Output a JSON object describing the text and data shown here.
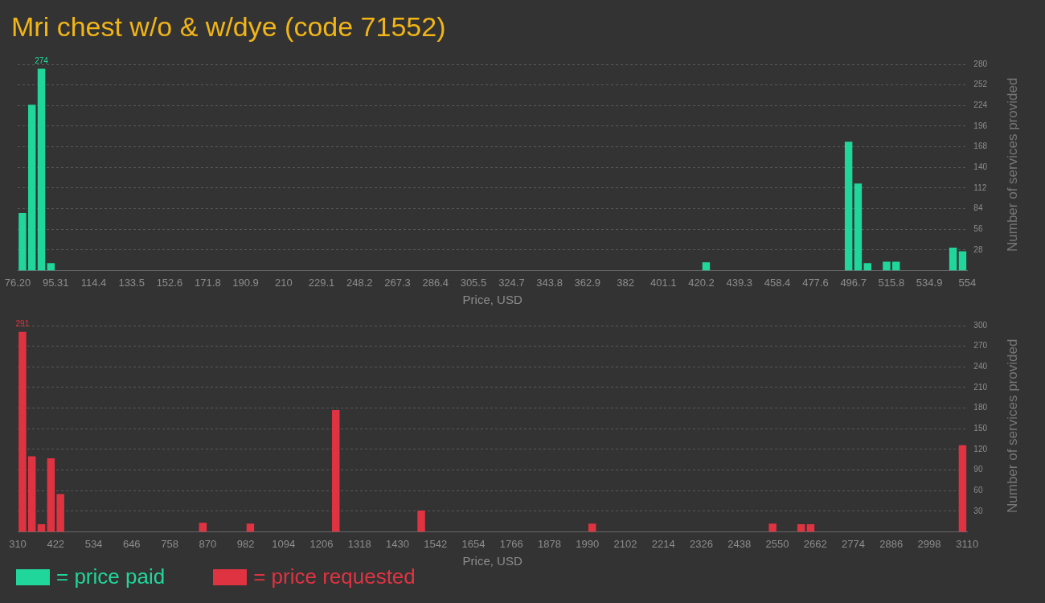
{
  "chart_data": [
    {
      "type": "histogram",
      "title": "Mri chest w/o & w/dye (code 71552)",
      "xlabel": "Price, USD",
      "ylabel": "Number of services provided",
      "bins": [
        76.2,
        80.98,
        85.76,
        90.53,
        95.31,
        100.09,
        104.87,
        109.65,
        114.42,
        119.2,
        123.98,
        128.76,
        133.54,
        138.31,
        143.09,
        147.87,
        152.65,
        157.43,
        162.2,
        166.98,
        171.76,
        176.54,
        181.32,
        186.09,
        190.87,
        195.65,
        200.43,
        205.21,
        209.98,
        214.76,
        219.54,
        224.32,
        229.1,
        233.87,
        238.65,
        243.43,
        248.21,
        252.99,
        257.76,
        262.54,
        267.32,
        272.1,
        276.88,
        281.65,
        286.43,
        291.21,
        295.99,
        300.77,
        305.54,
        310.32,
        315.1,
        319.88,
        324.66,
        329.43,
        334.21,
        338.99,
        343.77,
        348.55,
        353.32,
        358.1,
        362.88,
        367.66,
        372.44,
        377.21,
        381.99,
        386.77,
        391.55,
        396.33,
        401.1,
        405.88,
        410.66,
        415.44,
        420.22,
        424.99,
        429.77,
        434.55,
        439.33,
        444.11,
        448.88,
        453.66,
        458.44,
        463.22,
        468.0,
        472.77,
        477.55,
        482.33,
        487.11,
        491.89,
        496.66,
        501.44,
        506.22,
        511.0,
        515.78,
        520.55,
        525.33,
        530.11,
        534.89,
        539.67,
        544.44,
        549.22,
        554.0
      ],
      "series": [
        {
          "name": "= price paid",
          "color": "#20d69a",
          "values": [
            78,
            225,
            274,
            10,
            0,
            0,
            0,
            0,
            0,
            0,
            0,
            0,
            0,
            0,
            0,
            0,
            0,
            0,
            0,
            0,
            0,
            0,
            0,
            0,
            0,
            0,
            0,
            0,
            0,
            0,
            0,
            0,
            0,
            0,
            0,
            0,
            0,
            0,
            0,
            0,
            0,
            0,
            0,
            0,
            0,
            0,
            0,
            0,
            0,
            0,
            0,
            0,
            0,
            0,
            0,
            0,
            0,
            0,
            0,
            0,
            0,
            0,
            0,
            0,
            0,
            0,
            0,
            0,
            0,
            0,
            0,
            0,
            11,
            0,
            0,
            0,
            0,
            0,
            0,
            0,
            0,
            0,
            0,
            0,
            0,
            0,
            0,
            175,
            118,
            10,
            0,
            12,
            12,
            0,
            0,
            0,
            0,
            0,
            31,
            26
          ],
          "value_labels": [
            null,
            null,
            "274",
            null,
            null,
            null,
            null,
            null,
            null,
            null,
            null,
            null,
            null,
            null,
            null,
            null,
            null,
            null,
            null,
            null,
            null,
            null,
            null,
            null,
            null,
            null,
            null,
            null,
            null,
            null,
            null,
            null,
            null,
            null,
            null,
            null,
            null,
            null,
            null,
            null,
            null,
            null,
            null,
            null,
            null,
            null,
            null,
            null,
            null,
            null,
            null,
            null,
            null,
            null,
            null,
            null,
            null,
            null,
            null,
            null,
            null,
            null,
            null,
            null,
            null,
            null,
            null,
            null,
            null,
            null,
            null,
            null,
            null,
            null,
            null,
            null,
            null,
            null,
            null,
            null,
            null,
            null,
            null,
            null,
            null,
            null,
            null,
            null,
            null,
            null,
            null,
            null,
            null,
            null,
            null,
            null,
            null,
            null,
            null,
            null
          ]
        }
      ],
      "xlim": [
        76.2,
        554
      ],
      "xticks": [
        {
          "value": 76.2,
          "label": "76.20"
        },
        95.31,
        114.4,
        133.5,
        152.6,
        171.8,
        190.9,
        210,
        229.1,
        248.2,
        267.3,
        286.4,
        305.5,
        324.7,
        343.8,
        362.9,
        382,
        401.1,
        420.2,
        439.3,
        458.4,
        477.6,
        496.7,
        515.8,
        534.9,
        554
      ],
      "ylim": [
        0,
        280
      ],
      "yticks": [
        28,
        56,
        84,
        112,
        140,
        168,
        196,
        224,
        252,
        280
      ],
      "grid": "y",
      "legend": "bottom"
    },
    {
      "type": "histogram",
      "xlabel": "Price, USD",
      "ylabel": "Number of services provided",
      "bins": [
        310,
        338,
        366,
        394,
        422,
        450,
        478,
        506,
        534,
        562,
        590,
        618,
        646,
        674,
        702,
        730,
        758,
        786,
        814,
        842,
        870,
        898,
        926,
        954,
        982,
        1010,
        1038,
        1066,
        1094,
        1122,
        1150,
        1178,
        1206,
        1234,
        1262,
        1290,
        1318,
        1346,
        1374,
        1402,
        1430,
        1458,
        1486,
        1514,
        1542,
        1570,
        1598,
        1626,
        1654,
        1682,
        1710,
        1738,
        1766,
        1794,
        1822,
        1850,
        1878,
        1906,
        1934,
        1962,
        1990,
        2018,
        2046,
        2074,
        2102,
        2130,
        2158,
        2186,
        2214,
        2242,
        2270,
        2298,
        2326,
        2354,
        2382,
        2410,
        2438,
        2466,
        2494,
        2522,
        2550,
        2578,
        2606,
        2634,
        2662,
        2690,
        2718,
        2746,
        2774,
        2802,
        2830,
        2858,
        2886,
        2914,
        2942,
        2970,
        2998,
        3026,
        3054,
        3082,
        3110
      ],
      "series": [
        {
          "name": "= price requested",
          "color": "#e03342",
          "values": [
            291,
            110,
            11,
            107,
            55,
            0,
            0,
            0,
            0,
            0,
            0,
            0,
            0,
            0,
            0,
            0,
            0,
            0,
            0,
            13,
            0,
            0,
            0,
            0,
            12,
            0,
            0,
            0,
            0,
            0,
            0,
            0,
            0,
            177,
            0,
            0,
            0,
            0,
            0,
            0,
            0,
            0,
            31,
            0,
            0,
            0,
            0,
            0,
            0,
            0,
            0,
            0,
            0,
            0,
            0,
            0,
            0,
            0,
            0,
            0,
            12,
            0,
            0,
            0,
            0,
            0,
            0,
            0,
            0,
            0,
            0,
            0,
            0,
            0,
            0,
            0,
            0,
            0,
            0,
            12,
            0,
            0,
            11,
            11,
            0,
            0,
            0,
            0,
            0,
            0,
            0,
            0,
            0,
            0,
            0,
            0,
            0,
            0,
            0,
            126
          ],
          "value_labels": [
            "291",
            null,
            null,
            null,
            null,
            null,
            null,
            null,
            null,
            null,
            null,
            null,
            null,
            null,
            null,
            null,
            null,
            null,
            null,
            null,
            null,
            null,
            null,
            null,
            null,
            null,
            null,
            null,
            null,
            null,
            null,
            null,
            null,
            null,
            null,
            null,
            null,
            null,
            null,
            null,
            null,
            null,
            null,
            null,
            null,
            null,
            null,
            null,
            null,
            null,
            null,
            null,
            null,
            null,
            null,
            null,
            null,
            null,
            null,
            null,
            null,
            null,
            null,
            null,
            null,
            null,
            null,
            null,
            null,
            null,
            null,
            null,
            null,
            null,
            null,
            null,
            null,
            null,
            null,
            null,
            null,
            null,
            null,
            null,
            null,
            null,
            null,
            null,
            null,
            null,
            null,
            null,
            null,
            null,
            null,
            null,
            null,
            null,
            null,
            null
          ]
        }
      ],
      "xlim": [
        310,
        3110
      ],
      "xticks": [
        310,
        422,
        534,
        646,
        758,
        870,
        982,
        1094,
        1206,
        1318,
        1430,
        1542,
        1654,
        1766,
        1878,
        1990,
        2102,
        2214,
        2326,
        2438,
        2550,
        2662,
        2774,
        2886,
        2998,
        3110
      ],
      "ylim": [
        0,
        300
      ],
      "yticks": [
        30,
        60,
        90,
        120,
        150,
        180,
        210,
        240,
        270,
        300
      ],
      "grid": "y",
      "legend": "bottom"
    }
  ]
}
